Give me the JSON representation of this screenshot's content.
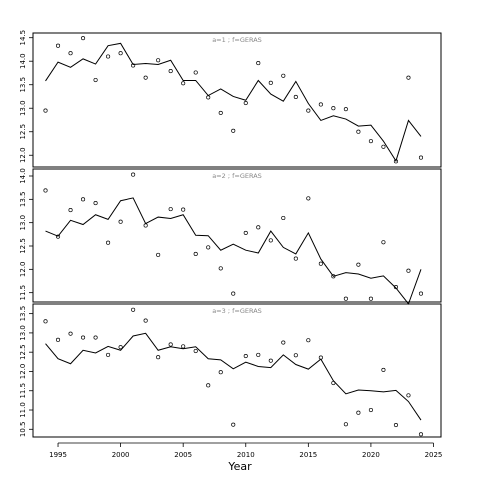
{
  "chart_data": {
    "type": "line",
    "xlabel": "Year",
    "x_ticks": [
      1995,
      2000,
      2005,
      2010,
      2015,
      2020,
      2025
    ],
    "xlim": [
      1993.0,
      2025.6
    ],
    "panels": [
      {
        "label": "a=1  ;  f=GERAS",
        "ylim": [
          11.75,
          14.6
        ],
        "y_ticks": [
          12.0,
          12.5,
          13.0,
          13.5,
          14.0,
          14.5
        ],
        "points": [
          [
            1994,
            12.95
          ],
          [
            1995,
            14.33
          ],
          [
            1996,
            14.17
          ],
          [
            1997,
            14.49
          ],
          [
            1998,
            13.6
          ],
          [
            1999,
            14.1
          ],
          [
            2000,
            14.17
          ],
          [
            2001,
            13.91
          ],
          [
            2002,
            13.65
          ],
          [
            2003,
            14.02
          ],
          [
            2004,
            13.79
          ],
          [
            2005,
            13.53
          ],
          [
            2006,
            13.76
          ],
          [
            2007,
            13.23
          ],
          [
            2008,
            12.9
          ],
          [
            2009,
            12.52
          ],
          [
            2010,
            13.11
          ],
          [
            2011,
            13.96
          ],
          [
            2012,
            13.54
          ],
          [
            2013,
            13.69
          ],
          [
            2014,
            13.24
          ],
          [
            2015,
            12.95
          ],
          [
            2016,
            13.08
          ],
          [
            2017,
            13.0
          ],
          [
            2018,
            12.98
          ],
          [
            2019,
            12.5
          ],
          [
            2020,
            12.3
          ],
          [
            2021,
            12.18
          ],
          [
            2022,
            11.87
          ],
          [
            2023,
            13.65
          ],
          [
            2024,
            11.95
          ]
        ],
        "line": [
          [
            1994,
            13.58
          ],
          [
            1995,
            13.98
          ],
          [
            1996,
            13.87
          ],
          [
            1997,
            14.05
          ],
          [
            1998,
            13.94
          ],
          [
            1999,
            14.33
          ],
          [
            2000,
            14.38
          ],
          [
            2001,
            13.93
          ],
          [
            2002,
            13.95
          ],
          [
            2003,
            13.93
          ],
          [
            2004,
            14.02
          ],
          [
            2005,
            13.59
          ],
          [
            2006,
            13.59
          ],
          [
            2007,
            13.27
          ],
          [
            2008,
            13.41
          ],
          [
            2009,
            13.25
          ],
          [
            2010,
            13.17
          ],
          [
            2011,
            13.59
          ],
          [
            2012,
            13.3
          ],
          [
            2013,
            13.15
          ],
          [
            2014,
            13.57
          ],
          [
            2015,
            13.1
          ],
          [
            2016,
            12.74
          ],
          [
            2017,
            12.84
          ],
          [
            2018,
            12.77
          ],
          [
            2019,
            12.62
          ],
          [
            2020,
            12.64
          ],
          [
            2021,
            12.3
          ],
          [
            2022,
            11.88
          ],
          [
            2023,
            12.74
          ],
          [
            2024,
            12.4
          ]
        ]
      },
      {
        "label": "a=2  ;  f=GERAS",
        "ylim": [
          11.3,
          14.15
        ],
        "y_ticks": [
          11.5,
          12.0,
          12.5,
          13.0,
          13.5,
          14.0
        ],
        "points": [
          [
            1994,
            13.69
          ],
          [
            1995,
            12.7
          ],
          [
            1996,
            13.27
          ],
          [
            1997,
            13.5
          ],
          [
            1998,
            13.42
          ],
          [
            1999,
            12.57
          ],
          [
            2000,
            13.02
          ],
          [
            2001,
            14.03
          ],
          [
            2002,
            12.94
          ],
          [
            2003,
            12.31
          ],
          [
            2004,
            13.29
          ],
          [
            2005,
            13.28
          ],
          [
            2006,
            12.33
          ],
          [
            2007,
            12.47
          ],
          [
            2008,
            12.02
          ],
          [
            2009,
            11.48
          ],
          [
            2010,
            12.78
          ],
          [
            2011,
            12.9
          ],
          [
            2012,
            12.62
          ],
          [
            2013,
            13.1
          ],
          [
            2014,
            12.23
          ],
          [
            2015,
            13.52
          ],
          [
            2016,
            12.12
          ],
          [
            2017,
            11.85
          ],
          [
            2018,
            11.37
          ],
          [
            2019,
            12.1
          ],
          [
            2020,
            11.37
          ],
          [
            2021,
            12.58
          ],
          [
            2022,
            11.62
          ],
          [
            2023,
            11.97
          ],
          [
            2024,
            11.48
          ]
        ],
        "line": [
          [
            1994,
            12.82
          ],
          [
            1995,
            12.71
          ],
          [
            1996,
            13.05
          ],
          [
            1997,
            12.96
          ],
          [
            1998,
            13.17
          ],
          [
            1999,
            13.07
          ],
          [
            2000,
            13.47
          ],
          [
            2001,
            13.53
          ],
          [
            2002,
            12.98
          ],
          [
            2003,
            13.12
          ],
          [
            2004,
            13.09
          ],
          [
            2005,
            13.17
          ],
          [
            2006,
            12.73
          ],
          [
            2007,
            12.72
          ],
          [
            2008,
            12.41
          ],
          [
            2009,
            12.54
          ],
          [
            2010,
            12.41
          ],
          [
            2011,
            12.35
          ],
          [
            2012,
            12.82
          ],
          [
            2013,
            12.47
          ],
          [
            2014,
            12.33
          ],
          [
            2015,
            12.78
          ],
          [
            2016,
            12.22
          ],
          [
            2017,
            11.85
          ],
          [
            2018,
            11.93
          ],
          [
            2019,
            11.9
          ],
          [
            2020,
            11.81
          ],
          [
            2021,
            11.86
          ],
          [
            2022,
            11.6
          ],
          [
            2023,
            11.26
          ],
          [
            2024,
            12.0
          ]
        ]
      },
      {
        "label": "a=3  ;  f=GERAS",
        "ylim": [
          10.3,
          13.75
        ],
        "y_ticks": [
          10.5,
          11.0,
          11.5,
          12.0,
          12.5,
          13.0,
          13.5
        ],
        "points": [
          [
            1994,
            13.3
          ],
          [
            1995,
            12.82
          ],
          [
            1996,
            12.98
          ],
          [
            1997,
            12.88
          ],
          [
            1998,
            12.88
          ],
          [
            1999,
            12.43
          ],
          [
            2000,
            12.63
          ],
          [
            2001,
            13.6
          ],
          [
            2002,
            13.32
          ],
          [
            2003,
            12.37
          ],
          [
            2004,
            12.7
          ],
          [
            2005,
            12.65
          ],
          [
            2006,
            12.53
          ],
          [
            2007,
            11.64
          ],
          [
            2008,
            11.98
          ],
          [
            2009,
            10.62
          ],
          [
            2010,
            12.4
          ],
          [
            2011,
            12.43
          ],
          [
            2012,
            12.28
          ],
          [
            2013,
            12.75
          ],
          [
            2014,
            12.42
          ],
          [
            2015,
            12.81
          ],
          [
            2016,
            12.36
          ],
          [
            2017,
            11.7
          ],
          [
            2018,
            10.63
          ],
          [
            2019,
            10.93
          ],
          [
            2020,
            11.0
          ],
          [
            2021,
            12.04
          ],
          [
            2022,
            10.61
          ],
          [
            2023,
            11.38
          ],
          [
            2024,
            10.37
          ]
        ],
        "line": [
          [
            1994,
            12.72
          ],
          [
            1995,
            12.33
          ],
          [
            1996,
            12.2
          ],
          [
            1997,
            12.55
          ],
          [
            1998,
            12.48
          ],
          [
            1999,
            12.65
          ],
          [
            2000,
            12.55
          ],
          [
            2001,
            12.92
          ],
          [
            2002,
            12.99
          ],
          [
            2003,
            12.55
          ],
          [
            2004,
            12.64
          ],
          [
            2005,
            12.59
          ],
          [
            2006,
            12.64
          ],
          [
            2007,
            12.33
          ],
          [
            2008,
            12.3
          ],
          [
            2009,
            12.07
          ],
          [
            2010,
            12.24
          ],
          [
            2011,
            12.13
          ],
          [
            2012,
            12.1
          ],
          [
            2013,
            12.43
          ],
          [
            2014,
            12.18
          ],
          [
            2015,
            12.06
          ],
          [
            2016,
            12.32
          ],
          [
            2017,
            11.76
          ],
          [
            2018,
            11.42
          ],
          [
            2019,
            11.52
          ],
          [
            2020,
            11.5
          ],
          [
            2021,
            11.47
          ],
          [
            2022,
            11.51
          ],
          [
            2023,
            11.22
          ],
          [
            2024,
            10.74
          ]
        ]
      }
    ],
    "grid": false,
    "legend": "none"
  }
}
